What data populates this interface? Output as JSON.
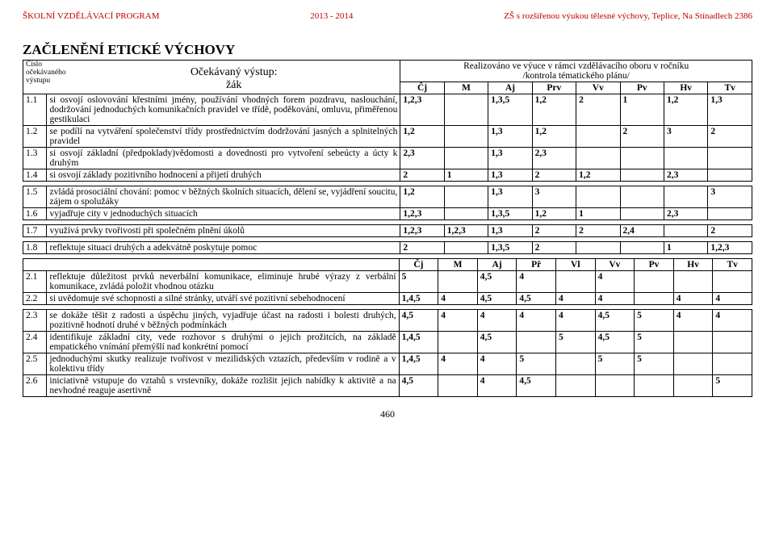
{
  "header": {
    "left": "ŠKOLNÍ VZDĚLÁVACÍ PROGRAM",
    "center": "2013 - 2014",
    "right": "ZŠ s rozšířenou výukou tělesné výchovy, Teplice, Na Stínadlech 2386"
  },
  "title": "ZAČLENĚNÍ   ETICKÉ  VÝCHOVY",
  "sub": {
    "l1": "Číslo",
    "l2": "očekávaného",
    "l3": "výstupu",
    "mid1": "Očekávaný výstup:",
    "mid2": "žák",
    "r1": "Realizováno ve výuce v rámci vzdělávacího oboru v ročníku",
    "r2": "/kontrola tématického plánu/"
  },
  "cols1": [
    "Čj",
    "M",
    "Aj",
    "Prv",
    "Vv",
    "Pv",
    "Hv",
    "Tv"
  ],
  "cols2": [
    "Čj",
    "M",
    "Aj",
    "Př",
    "Vl",
    "Vv",
    "Pv",
    "Hv",
    "Tv"
  ],
  "rows1": [
    {
      "n": "1.1",
      "d": "si osvojí oslovování křestními jmény, používání vhodných forem  pozdravu, naslouchání, dodržování jednoduchých komunikačních pravidel ve třídě, poděkování, omluvu, přiměřenou gestikulaci",
      "v": [
        "1,2,3",
        "",
        "1,3,5",
        "1,2",
        "2",
        "1",
        "1,2",
        "1,3"
      ]
    },
    {
      "n": "1.2",
      "d": "se podílí na vytváření společenství třídy prostřednictvím dodržování jasných a splnitelných pravidel",
      "v": [
        "1,2",
        "",
        "1,3",
        "1,2",
        "",
        "2",
        "3",
        "2"
      ]
    },
    {
      "n": "1.3",
      "d": "si osvojí základní (předpoklady)vědomosti a dovednosti  pro vytvoření sebeúcty a úcty k druhým",
      "v": [
        "2,3",
        "",
        "1,3",
        "2,3",
        "",
        "",
        "",
        ""
      ]
    },
    {
      "n": "1.4",
      "d": "si osvojí základy pozitivního hodnocení a přijetí druhých",
      "v": [
        "2",
        "1",
        "1,3",
        "2",
        "1,2",
        "",
        "2,3",
        ""
      ]
    }
  ],
  "rows1b": [
    {
      "n": "1.5",
      "d": "zvládá prosociální chování: pomoc v běžných školních situacích, dělení se, vyjádření soucitu, zájem o spolužáky",
      "v": [
        "1,2",
        "",
        "1,3",
        "3",
        "",
        "",
        "",
        "3"
      ]
    },
    {
      "n": "1.6",
      "d": "vyjadřuje city v jednoduchých situacích",
      "v": [
        "1,2,3",
        "",
        "1,3,5",
        "1,2",
        "1",
        "",
        "2,3",
        ""
      ]
    }
  ],
  "rows1c": [
    {
      "n": "1.7",
      "d": "využívá  prvky tvořivosti při společném plnění úkolů",
      "v": [
        "1,2,3",
        "1,2,3",
        "1,3",
        "2",
        "2",
        "2,4",
        "",
        "2"
      ]
    }
  ],
  "rows1d": [
    {
      "n": "1.8",
      "d": "reflektuje situaci druhých a adekvátně poskytuje pomoc",
      "v": [
        "2",
        "",
        "1,3,5",
        "2",
        "",
        "",
        "1",
        "1,2,3"
      ]
    }
  ],
  "rows2": [
    {
      "n": "2.1",
      "d": "reflektuje důležitost prvků neverbální komunikace,  eliminuje hrubé výrazy z verbální komunikace, zvládá položit vhodnou otázku",
      "v": [
        "5",
        "",
        "4,5",
        "4",
        "",
        "4",
        "",
        "",
        ""
      ]
    },
    {
      "n": "2.2",
      "d": "si uvědomuje své schopnosti a silné stránky, utváří své pozitivní sebehodnocení",
      "v": [
        "1,4,5",
        "4",
        "4,5",
        "4,5",
        "4",
        "4",
        "",
        "4",
        "4"
      ]
    }
  ],
  "rows2b": [
    {
      "n": "2.3",
      "d": "se dokáže těšit z radosti a úspěchu jiných, vyjadřuje účast na radosti i bolesti druhých, pozitivně hodnotí druhé v běžných podmínkách",
      "v": [
        "4,5",
        "4",
        "4",
        "4",
        "4",
        "4,5",
        "5",
        "4",
        "4"
      ]
    },
    {
      "n": "2.4",
      "d": "identifikuje základní city,  vede rozhovor s druhými o jejich prožitcích,  na základě empatického vnímání přemýšlí nad konkrétní pomocí",
      "v": [
        "1,4,5",
        "",
        "4,5",
        "",
        "5",
        "4,5",
        "5",
        "",
        ""
      ]
    },
    {
      "n": "2.5",
      "d": "jednoduchými skutky realizuje tvořivost v mezilidských vztazích, především v rodině a v kolektivu třídy",
      "v": [
        "1,4,5",
        "4",
        "4",
        "5",
        "",
        "5",
        "5",
        "",
        ""
      ]
    },
    {
      "n": "2.6",
      "d": "iniciativně vstupuje do  vztahů  s vrstevníky,  dokáže rozlišit  jejich  nabídky k aktivitě a na nevhodné reaguje asertivně",
      "v": [
        "4,5",
        "",
        "4",
        "4,5",
        "",
        "",
        "",
        "",
        "5"
      ]
    }
  ],
  "page": "460"
}
